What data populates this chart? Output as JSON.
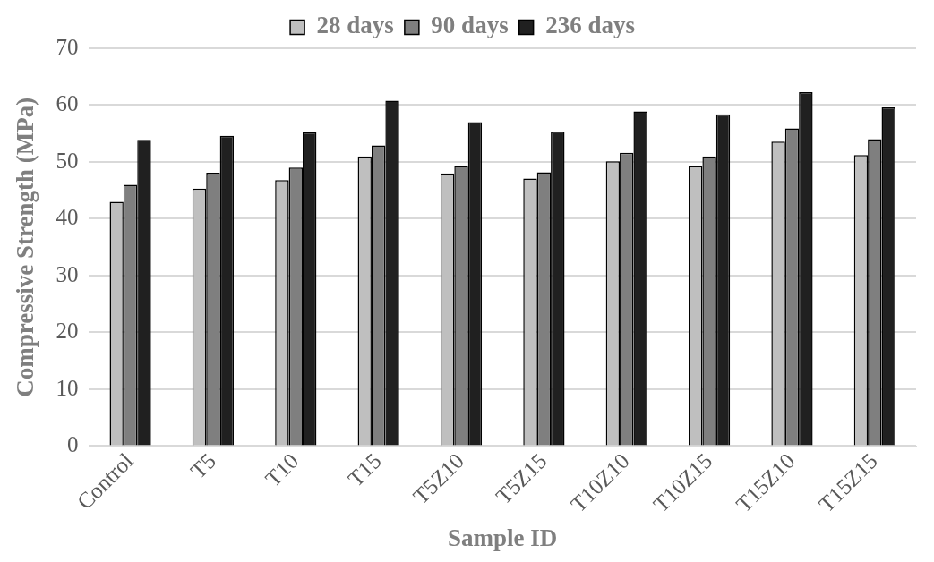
{
  "chart_data": {
    "type": "bar",
    "xlabel": "Sample ID",
    "ylabel": "Compressive Strength (MPa)",
    "categories": [
      "Control",
      "T5",
      "T10",
      "T15",
      "T5Z10",
      "T5Z15",
      "T10Z10",
      "T10Z15",
      "T15Z10",
      "T15Z15"
    ],
    "series": [
      {
        "name": "28 days",
        "color": "#bfbfbf",
        "values": [
          43.0,
          45.3,
          46.8,
          51.0,
          48.0,
          47.1,
          50.1,
          49.3,
          53.6,
          51.2
        ]
      },
      {
        "name": "90 days",
        "color": "#7f7f7f",
        "values": [
          46.0,
          48.1,
          49.0,
          52.9,
          49.3,
          48.2,
          51.6,
          51.0,
          55.9,
          54.0
        ]
      },
      {
        "name": "236 days",
        "color": "#202020",
        "values": [
          53.9,
          54.6,
          55.2,
          60.8,
          57.0,
          55.3,
          58.9,
          58.4,
          62.3,
          59.6
        ]
      }
    ],
    "ylim": [
      0,
      70
    ],
    "yticks": [
      0,
      10,
      20,
      30,
      40,
      50,
      60,
      70
    ],
    "grid": "y",
    "legend": "top"
  }
}
